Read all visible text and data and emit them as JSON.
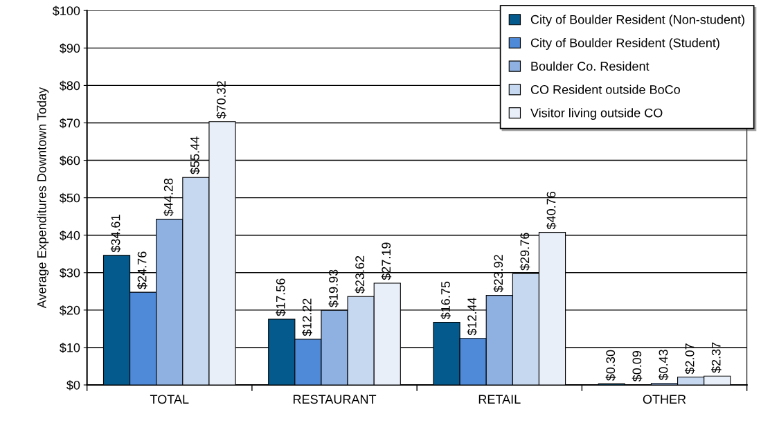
{
  "chart_data": {
    "type": "bar",
    "ylabel": "Average Expenditures Downtown Today",
    "categories": [
      "TOTAL",
      "RESTAURANT",
      "RETAIL",
      "OTHER"
    ],
    "series": [
      {
        "name": "City of Boulder Resident (Non-student)",
        "color": "#045a8d",
        "values": [
          34.61,
          17.56,
          16.75,
          0.3
        ],
        "value_labels": [
          "$34.61",
          "$17.56",
          "$16.75",
          "$0.30"
        ]
      },
      {
        "name": "City of Boulder Resident (Student)",
        "color": "#4f8ad8",
        "values": [
          24.76,
          12.22,
          12.44,
          0.09
        ],
        "value_labels": [
          "$24.76",
          "$12.22",
          "$12.44",
          "$0.09"
        ]
      },
      {
        "name": "Boulder Co. Resident",
        "color": "#8eb1e2",
        "values": [
          44.28,
          19.93,
          23.92,
          0.43
        ],
        "value_labels": [
          "$44.28",
          "$19.93",
          "$23.92",
          "$0.43"
        ]
      },
      {
        "name": "CO Resident outside BoCo",
        "color": "#c6d8f0",
        "values": [
          55.44,
          23.62,
          29.76,
          2.07
        ],
        "value_labels": [
          "$55.44",
          "$23.62",
          "$29.76",
          "$2.07"
        ]
      },
      {
        "name": "Visitor living outside CO",
        "color": "#e9eff9",
        "values": [
          70.32,
          27.19,
          40.76,
          2.37
        ],
        "value_labels": [
          "$70.32",
          "$27.19",
          "$40.76",
          "$2.37"
        ]
      }
    ],
    "ylim": [
      0,
      100
    ],
    "yticks": [
      {
        "value": 0,
        "label": "$0"
      },
      {
        "value": 10,
        "label": "$10"
      },
      {
        "value": 20,
        "label": "$20"
      },
      {
        "value": 30,
        "label": "$30"
      },
      {
        "value": 40,
        "label": "$40"
      },
      {
        "value": 50,
        "label": "$50"
      },
      {
        "value": 60,
        "label": "$60"
      },
      {
        "value": 70,
        "label": "$70"
      },
      {
        "value": 80,
        "label": "$80"
      },
      {
        "value": 90,
        "label": "$90"
      },
      {
        "value": 100,
        "label": "$100"
      }
    ],
    "grid": "y",
    "legend": "top right"
  }
}
